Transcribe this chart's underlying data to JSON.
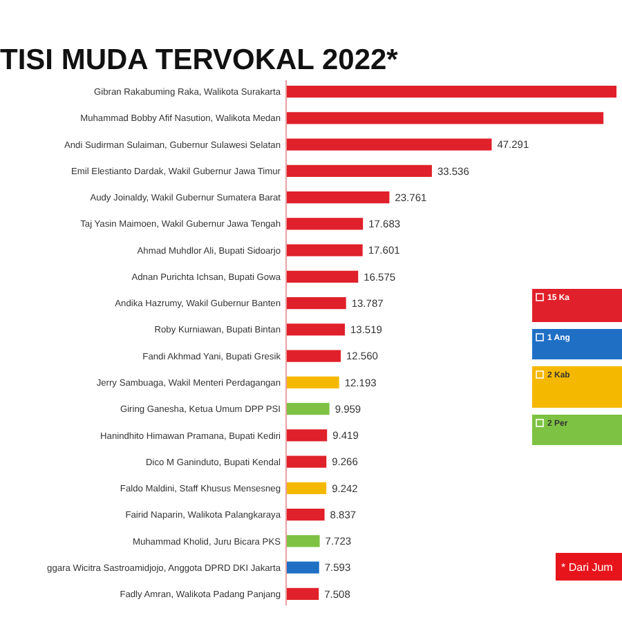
{
  "chart_data": {
    "type": "bar",
    "orientation": "horizontal",
    "title": "TISI MUDA TERVOKAL 2022*",
    "legend": "right",
    "annotations": [
      "* Dari Jum"
    ],
    "categories": [
      "Gibran Rakabuming Raka, Walikota Surakarta",
      "Muhammad Bobby Afif Nasution, Walikota Medan",
      "Andi Sudirman Sulaiman, Gubernur Sulawesi Selatan",
      "Emil Elestianto Dardak, Wakil Gubernur Jawa Timur",
      "Audy Joinaldy, Wakil Gubernur Sumatera Barat",
      "Taj Yasin Maimoen, Wakil Gubernur Jawa Tengah",
      "Ahmad Muhdlor Ali, Bupati Sidoarjo",
      "Adnan Purichta Ichsan, Bupati Gowa",
      "Andika Hazrumy, Wakil Gubernur Banten",
      "Roby Kurniawan, Bupati Bintan",
      "Fandi Akhmad Yani, Bupati Gresik",
      "Jerry Sambuaga, Wakil Menteri Perdagangan",
      "Giring Ganesha, Ketua Umum DPP PSI",
      "Hanindhito Himawan Pramana, Bupati Kediri",
      "Dico M Ganinduto, Bupati Kendal",
      "Faldo Maldini, Staff Khusus Mensesneg",
      "Fairid Naparin, Walikota Palangkaraya",
      "Muhammad Kholid, Juru Bicara PKS",
      "ggara Wicitra Sastroamidjojo, Anggota DPRD DKI Jakarta",
      "Fadly Amran, Walikota Padang Panjang"
    ],
    "series": [
      {
        "name": "15 Ka",
        "color": "#e0202a",
        "values": [
          76000,
          73000,
          47291,
          33536,
          23761,
          17683,
          17601,
          16575,
          13787,
          13519,
          12560,
          null,
          null,
          9419,
          9266,
          null,
          8837,
          null,
          null,
          7508
        ],
        "value_labels": [
          null,
          null,
          "47.291",
          "33.536",
          "23.761",
          "17.683",
          "17.601",
          "16.575",
          "13.787",
          "13.519",
          "12.560",
          null,
          null,
          "9.419",
          "9.266",
          null,
          "8.837",
          null,
          null,
          "7.508"
        ]
      },
      {
        "name": "1 Ang",
        "color": "#1f6fc5",
        "values": [
          null,
          null,
          null,
          null,
          null,
          null,
          null,
          null,
          null,
          null,
          null,
          null,
          null,
          null,
          null,
          null,
          null,
          null,
          7593,
          null
        ],
        "value_labels": [
          null,
          null,
          null,
          null,
          null,
          null,
          null,
          null,
          null,
          null,
          null,
          null,
          null,
          null,
          null,
          null,
          null,
          null,
          "7.593",
          null
        ]
      },
      {
        "name": "2 Kab",
        "color": "#f5b800",
        "values": [
          null,
          null,
          null,
          null,
          null,
          null,
          null,
          null,
          null,
          null,
          null,
          12193,
          null,
          null,
          null,
          9242,
          null,
          null,
          null,
          null
        ],
        "value_labels": [
          null,
          null,
          null,
          null,
          null,
          null,
          null,
          null,
          null,
          null,
          null,
          "12.193",
          null,
          null,
          null,
          "9.242",
          null,
          null,
          null,
          null
        ]
      },
      {
        "name": "2 Per",
        "color": "#7dc242",
        "values": [
          null,
          null,
          null,
          null,
          null,
          null,
          null,
          null,
          null,
          null,
          null,
          null,
          9959,
          null,
          null,
          null,
          null,
          7723,
          null,
          null
        ],
        "value_labels": [
          null,
          null,
          null,
          null,
          null,
          null,
          null,
          null,
          null,
          null,
          null,
          null,
          "9.959",
          null,
          null,
          null,
          null,
          "7.723",
          null,
          null
        ]
      }
    ]
  }
}
